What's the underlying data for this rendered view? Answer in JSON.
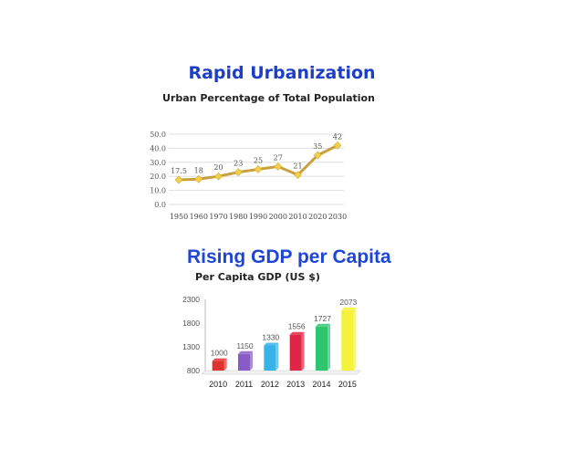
{
  "chart_data": [
    {
      "type": "line",
      "title": "Rapid Urbanization",
      "subtitle": "Urban Percentage of Total Population",
      "categories": [
        "1950",
        "1960",
        "1970",
        "1980",
        "1990",
        "2000",
        "2010",
        "2020",
        "2030"
      ],
      "values": [
        17.5,
        18,
        20,
        23,
        25,
        27,
        21,
        35,
        42
      ],
      "data_labels": [
        "17.5",
        "18",
        "20",
        "23",
        "25",
        "27",
        "21",
        "35",
        "42"
      ],
      "y_ticks": [
        "0.0",
        "10.0",
        "20.0",
        "30.0",
        "40.0",
        "50.0"
      ],
      "ylim": [
        0,
        50
      ],
      "grid": true,
      "color": "#c9a03c",
      "marker_color": "#f2d04a"
    },
    {
      "type": "bar",
      "title": "Rising GDP per Capita",
      "subtitle": "Per Capita GDP (US $)",
      "categories": [
        "2010",
        "2011",
        "2012",
        "2013",
        "2014",
        "2015"
      ],
      "values": [
        1000,
        1150,
        1330,
        1556,
        1727,
        2073
      ],
      "data_labels": [
        "1000",
        "1150",
        "1330",
        "1556",
        "1727",
        "2073"
      ],
      "y_ticks": [
        "800",
        "1300",
        "1800",
        "2300"
      ],
      "ylim": [
        800,
        2300
      ],
      "grid": false,
      "colors": [
        "#e0312f",
        "#8a5ac7",
        "#38b3ea",
        "#e02646",
        "#2fc46e",
        "#f4f23a"
      ]
    }
  ]
}
